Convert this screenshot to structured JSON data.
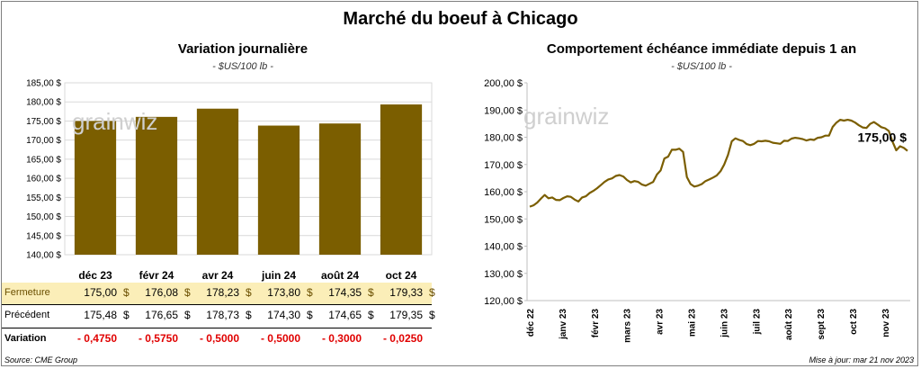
{
  "title": "Marché du boeuf à Chicago",
  "source": "Source: CME Group",
  "updated": "Mise à jour: mar 21 nov 2023",
  "watermark": "grainwiz",
  "colors": {
    "bar": "#7b5e00",
    "line": "#7b5e00",
    "highlight": "#fbeeb8",
    "negative": "#e00000"
  },
  "chart_data": [
    {
      "type": "bar",
      "title": "Variation  journalière",
      "subtitle": "- $US/100 lb -",
      "categories": [
        "déc 23",
        "févr 24",
        "avr 24",
        "juin 24",
        "août 24",
        "oct 24"
      ],
      "values": [
        175.0,
        176.08,
        178.23,
        173.8,
        174.35,
        179.33
      ],
      "ylim": [
        140,
        185
      ],
      "yticks": [
        "140,00 $",
        "145,00 $",
        "150,00 $",
        "155,00 $",
        "160,00 $",
        "165,00 $",
        "170,00 $",
        "175,00 $",
        "180,00 $",
        "185,00 $"
      ],
      "grid": true
    },
    {
      "type": "line",
      "title": "Comportement  échéance immédiate depuis 1 an",
      "subtitle": "- $US/100 lb -",
      "ylim": [
        120,
        200
      ],
      "yticks": [
        "120,00 $",
        "130,00 $",
        "140,00 $",
        "150,00 $",
        "160,00 $",
        "170,00 $",
        "180,00 $",
        "190,00 $",
        "200,00 $"
      ],
      "xticks": [
        "déc 22",
        "janv 23",
        "févr 23",
        "mars 23",
        "avr 23",
        "mai 23",
        "juin 23",
        "juil 23",
        "août 23",
        "sept 23",
        "oct 23",
        "nov 23"
      ],
      "last_label": "175,00 $",
      "grid": false,
      "series": [
        {
          "values": [
            154.5,
            155.0,
            156.0,
            157.5,
            158.8,
            157.6,
            157.9,
            157.0,
            156.9,
            157.7,
            158.3,
            158.1,
            157.1,
            156.4,
            157.9,
            158.3,
            159.5,
            160.3,
            161.3,
            162.4,
            163.6,
            164.5,
            164.9,
            165.8,
            166.1,
            165.6,
            164.3,
            163.4,
            163.9,
            163.6,
            162.6,
            162.2,
            162.9,
            163.6,
            166.3,
            167.8,
            172.2,
            172.9,
            175.4,
            175.4,
            175.8,
            174.6,
            165.4,
            162.8,
            161.9,
            162.2,
            162.8,
            163.9,
            164.5,
            165.2,
            166.0,
            167.5,
            170.0,
            173.5,
            178.5,
            179.6,
            179.0,
            178.6,
            177.5,
            177.1,
            177.6,
            178.6,
            178.5,
            178.7,
            178.5,
            178.0,
            177.8,
            177.6,
            178.7,
            178.6,
            179.5,
            179.8,
            179.6,
            179.3,
            178.8,
            179.2,
            179.0,
            179.8,
            180.0,
            180.6,
            180.6,
            183.8,
            185.4,
            186.4,
            186.1,
            186.4,
            186.1,
            185.4,
            184.4,
            183.6,
            183.4,
            184.9,
            185.6,
            184.7,
            183.7,
            183.3,
            182.3,
            178.3,
            175.2,
            176.7,
            176.1,
            175.0
          ]
        }
      ]
    }
  ],
  "table": {
    "rows": [
      {
        "label": "Fermeture",
        "values": [
          "175,00",
          "176,08",
          "178,23",
          "173,80",
          "174,35",
          "179,33"
        ],
        "unit": "$"
      },
      {
        "label": "Précédent",
        "values": [
          "175,48",
          "176,65",
          "178,73",
          "174,30",
          "174,65",
          "179,35"
        ],
        "unit": "$"
      },
      {
        "label": "Variation",
        "values": [
          "- 0,4750",
          "- 0,5750",
          "- 0,5000",
          "- 0,5000",
          "- 0,3000",
          "- 0,0250"
        ]
      }
    ]
  }
}
